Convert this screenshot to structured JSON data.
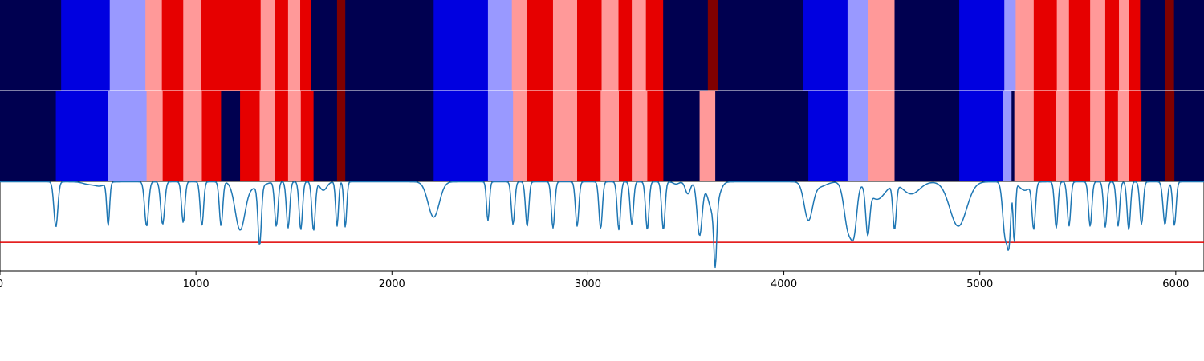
{
  "chart_data": {
    "type": "heatmap",
    "x_range": [
      0,
      6144
    ],
    "x_ticks": [
      0,
      1000,
      2000,
      3000,
      4000,
      5000,
      6000
    ],
    "x_tick_labels": [
      "0",
      "1000",
      "2000",
      "3000",
      "4000",
      "5000",
      "6000"
    ],
    "class_colors": [
      "#000050",
      "#0000e0",
      "#9999ff",
      "#ff9999",
      "#e60000",
      "#800000"
    ],
    "bands": [
      {
        "segments": [
          [
            0,
            312,
            0
          ],
          [
            312,
            560,
            1
          ],
          [
            560,
            742,
            2
          ],
          [
            742,
            826,
            3
          ],
          [
            826,
            935,
            4
          ],
          [
            935,
            1025,
            3
          ],
          [
            1025,
            1330,
            4
          ],
          [
            1330,
            1402,
            3
          ],
          [
            1402,
            1470,
            4
          ],
          [
            1470,
            1532,
            3
          ],
          [
            1532,
            1587,
            4
          ],
          [
            1587,
            1720,
            0
          ],
          [
            1720,
            1762,
            5
          ],
          [
            1762,
            2213,
            0
          ],
          [
            2213,
            2490,
            1
          ],
          [
            2490,
            2612,
            2
          ],
          [
            2612,
            2688,
            3
          ],
          [
            2688,
            2822,
            4
          ],
          [
            2822,
            2945,
            3
          ],
          [
            2945,
            3070,
            4
          ],
          [
            3070,
            3156,
            3
          ],
          [
            3156,
            3224,
            4
          ],
          [
            3224,
            3296,
            3
          ],
          [
            3296,
            3384,
            4
          ],
          [
            3384,
            3612,
            0
          ],
          [
            3612,
            3662,
            5
          ],
          [
            3662,
            4100,
            0
          ],
          [
            4100,
            4325,
            1
          ],
          [
            4325,
            4428,
            2
          ],
          [
            4428,
            4565,
            3
          ],
          [
            4565,
            4895,
            0
          ],
          [
            4895,
            5125,
            1
          ],
          [
            5125,
            5183,
            2
          ],
          [
            5183,
            5275,
            3
          ],
          [
            5275,
            5393,
            4
          ],
          [
            5393,
            5455,
            3
          ],
          [
            5455,
            5563,
            4
          ],
          [
            5563,
            5640,
            3
          ],
          [
            5640,
            5710,
            4
          ],
          [
            5710,
            5760,
            3
          ],
          [
            5760,
            5818,
            4
          ],
          [
            5818,
            5945,
            0
          ],
          [
            5945,
            5991,
            5
          ],
          [
            5991,
            6144,
            0
          ]
        ]
      },
      {
        "segments": [
          [
            0,
            285,
            0
          ],
          [
            285,
            552,
            1
          ],
          [
            552,
            748,
            2
          ],
          [
            748,
            830,
            3
          ],
          [
            830,
            935,
            4
          ],
          [
            935,
            1030,
            3
          ],
          [
            1030,
            1128,
            4
          ],
          [
            1128,
            1225,
            0
          ],
          [
            1225,
            1325,
            4
          ],
          [
            1325,
            1402,
            3
          ],
          [
            1402,
            1470,
            4
          ],
          [
            1470,
            1535,
            3
          ],
          [
            1535,
            1600,
            4
          ],
          [
            1600,
            1720,
            0
          ],
          [
            1720,
            1762,
            5
          ],
          [
            1762,
            2213,
            0
          ],
          [
            2213,
            2490,
            1
          ],
          [
            2490,
            2618,
            2
          ],
          [
            2618,
            2690,
            3
          ],
          [
            2690,
            2822,
            4
          ],
          [
            2822,
            2945,
            3
          ],
          [
            2945,
            3065,
            4
          ],
          [
            3065,
            3158,
            3
          ],
          [
            3158,
            3224,
            4
          ],
          [
            3224,
            3303,
            3
          ],
          [
            3303,
            3385,
            4
          ],
          [
            3385,
            3570,
            0
          ],
          [
            3570,
            3650,
            3
          ],
          [
            3650,
            4125,
            0
          ],
          [
            4125,
            4325,
            1
          ],
          [
            4325,
            4428,
            2
          ],
          [
            4428,
            4565,
            3
          ],
          [
            4565,
            4895,
            0
          ],
          [
            4895,
            5120,
            1
          ],
          [
            5120,
            5162,
            2
          ],
          [
            5162,
            5176,
            0
          ],
          [
            5176,
            5275,
            3
          ],
          [
            5275,
            5390,
            4
          ],
          [
            5390,
            5455,
            3
          ],
          [
            5455,
            5563,
            4
          ],
          [
            5563,
            5640,
            3
          ],
          [
            5640,
            5705,
            4
          ],
          [
            5705,
            5760,
            3
          ],
          [
            5760,
            5825,
            4
          ],
          [
            5825,
            5945,
            0
          ],
          [
            5945,
            5993,
            5
          ],
          [
            5993,
            6144,
            0
          ]
        ]
      }
    ],
    "signal": {
      "ylim": [
        0,
        1
      ],
      "threshold": 0.32,
      "threshold_color": "#e00000",
      "line_color": "#1f77b4",
      "baseline": 0.995,
      "dips": [
        [
          285,
          0.49,
          14
        ],
        [
          450,
          0.97,
          40
        ],
        [
          510,
          0.95,
          40
        ],
        [
          552,
          0.52,
          10
        ],
        [
          748,
          0.5,
          14
        ],
        [
          830,
          0.52,
          14
        ],
        [
          935,
          0.54,
          12
        ],
        [
          1030,
          0.5,
          12
        ],
        [
          1128,
          0.5,
          12
        ],
        [
          1225,
          0.47,
          35
        ],
        [
          1325,
          0.34,
          12
        ],
        [
          1300,
          0.93,
          60
        ],
        [
          1410,
          0.5,
          12
        ],
        [
          1470,
          0.48,
          12
        ],
        [
          1535,
          0.46,
          12
        ],
        [
          1600,
          0.45,
          12
        ],
        [
          1650,
          0.9,
          25
        ],
        [
          1720,
          0.5,
          10
        ],
        [
          1762,
          0.49,
          10
        ],
        [
          2213,
          0.6,
          40
        ],
        [
          2490,
          0.56,
          10
        ],
        [
          2618,
          0.52,
          12
        ],
        [
          2690,
          0.5,
          12
        ],
        [
          2822,
          0.48,
          12
        ],
        [
          2945,
          0.5,
          12
        ],
        [
          3065,
          0.47,
          12
        ],
        [
          3158,
          0.46,
          12
        ],
        [
          3224,
          0.52,
          12
        ],
        [
          3303,
          0.46,
          12
        ],
        [
          3385,
          0.46,
          12
        ],
        [
          3450,
          0.97,
          20
        ],
        [
          3510,
          0.86,
          18
        ],
        [
          3570,
          0.4,
          18
        ],
        [
          3640,
          0.65,
          35
        ],
        [
          3650,
          0.36,
          10
        ],
        [
          4125,
          0.58,
          30
        ],
        [
          4180,
          0.94,
          50
        ],
        [
          4330,
          0.45,
          30
        ],
        [
          4360,
          0.6,
          20
        ],
        [
          4428,
          0.5,
          14
        ],
        [
          4475,
          0.8,
          60
        ],
        [
          4565,
          0.5,
          12
        ],
        [
          4650,
          0.86,
          60
        ],
        [
          4890,
          0.5,
          60
        ],
        [
          5130,
          0.38,
          18
        ],
        [
          5150,
          0.45,
          12
        ],
        [
          5176,
          0.33,
          8
        ],
        [
          5230,
          0.9,
          40
        ],
        [
          5275,
          0.49,
          12
        ],
        [
          5390,
          0.48,
          12
        ],
        [
          5455,
          0.5,
          12
        ],
        [
          5563,
          0.5,
          12
        ],
        [
          5640,
          0.49,
          12
        ],
        [
          5705,
          0.5,
          12
        ],
        [
          5760,
          0.46,
          12
        ],
        [
          5825,
          0.52,
          12
        ],
        [
          5945,
          0.52,
          14
        ],
        [
          5993,
          0.51,
          12
        ]
      ]
    }
  }
}
